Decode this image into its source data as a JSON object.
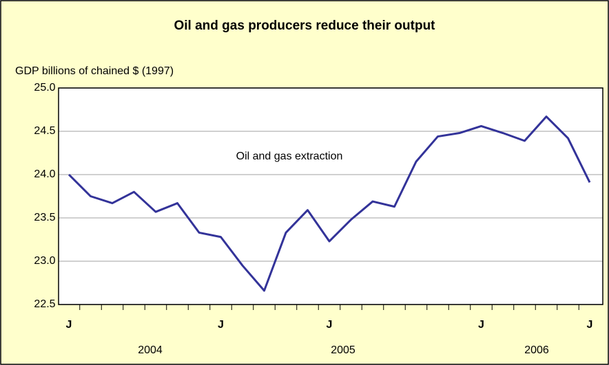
{
  "chart_data": {
    "type": "line",
    "title": "Oil and gas producers reduce their output",
    "y_label": "GDP billions of chained $ (1997)",
    "annotation": "Oil and gas extraction",
    "categories": [
      "J",
      null,
      null,
      null,
      null,
      null,
      null,
      "J",
      null,
      null,
      null,
      null,
      "J",
      null,
      null,
      null,
      null,
      null,
      null,
      "J",
      null,
      null,
      null,
      null,
      "J"
    ],
    "year_labels": [
      "2004",
      "2005",
      "2006"
    ],
    "series": [
      {
        "name": "Oil and gas extraction",
        "color": "#333399",
        "values": [
          24.0,
          23.75,
          23.67,
          23.8,
          23.57,
          23.67,
          23.33,
          23.28,
          22.95,
          22.66,
          23.33,
          23.59,
          23.23,
          23.48,
          23.69,
          23.63,
          24.15,
          24.44,
          24.48,
          24.56,
          24.48,
          24.39,
          24.67,
          24.42,
          23.91
        ]
      }
    ],
    "ylim": [
      22.5,
      25
    ],
    "yticks": [
      {
        "value": 22.5,
        "label": "22.5"
      },
      {
        "value": 23,
        "label": "23.0"
      },
      {
        "value": 23.5,
        "label": "23.5"
      },
      {
        "value": 24,
        "label": "24.0"
      },
      {
        "value": 24.5,
        "label": "24.5"
      },
      {
        "value": 25,
        "label": "25.0"
      }
    ],
    "grid": true
  }
}
